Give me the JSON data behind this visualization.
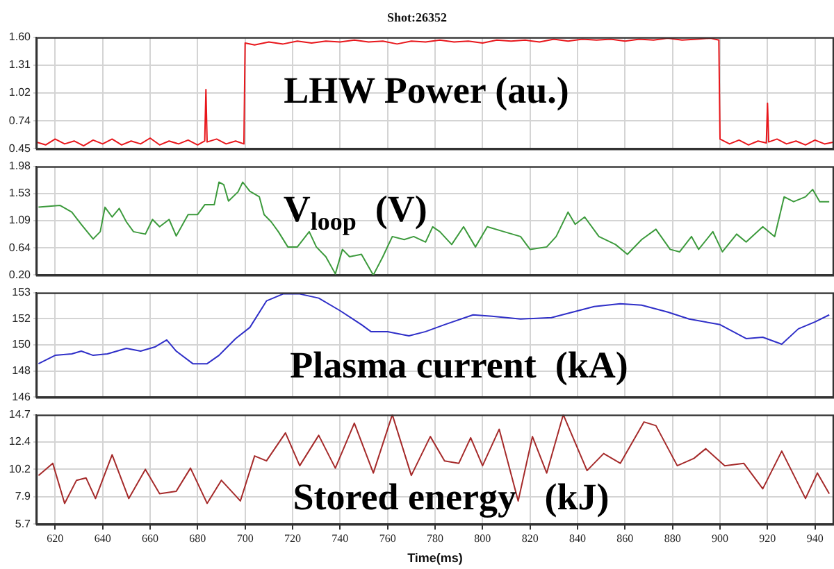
{
  "chart_data": [
    {
      "type": "line",
      "title": "Shot:26352",
      "annotations": [
        "LHW Power (au.)"
      ],
      "tick_labels": "y",
      "grid": true,
      "marker": "none",
      "xlim": [
        612,
        948
      ],
      "xticks": [
        620,
        640,
        660,
        680,
        700,
        720,
        740,
        760,
        780,
        800,
        820,
        840,
        860,
        880,
        900,
        920,
        940
      ],
      "ylim": [
        0.45,
        1.6
      ],
      "yticks": [
        {
          "value": 0.45,
          "label": "0.45"
        },
        {
          "value": 0.7375,
          "label": "0.74"
        },
        {
          "value": 1.025,
          "label": "1.02"
        },
        {
          "value": 1.3125,
          "label": "1.31"
        },
        {
          "value": 1.6,
          "label": "1.60"
        }
      ],
      "series": [
        {
          "color": "#e8161b",
          "x": [
            612,
            616,
            620,
            624,
            628,
            632,
            636,
            640,
            644,
            648,
            652,
            656,
            660,
            664,
            668,
            672,
            676,
            680,
            683,
            683.5,
            684,
            688,
            692,
            696,
            699.5,
            700,
            704,
            710,
            716,
            722,
            728,
            734,
            740,
            746,
            752,
            758,
            764,
            770,
            776,
            782,
            788,
            794,
            800,
            806,
            812,
            818,
            824,
            830,
            836,
            842,
            848,
            854,
            860,
            866,
            872,
            878,
            884,
            890,
            896,
            899.5,
            900,
            904,
            908,
            912,
            916,
            919.5,
            920,
            920.5,
            924,
            928,
            932,
            936,
            940,
            944,
            948
          ],
          "values": [
            0.52,
            0.49,
            0.55,
            0.5,
            0.53,
            0.48,
            0.54,
            0.5,
            0.55,
            0.49,
            0.53,
            0.5,
            0.56,
            0.49,
            0.53,
            0.5,
            0.54,
            0.49,
            0.53,
            1.06,
            0.52,
            0.55,
            0.5,
            0.53,
            0.5,
            1.54,
            1.52,
            1.55,
            1.53,
            1.56,
            1.54,
            1.56,
            1.55,
            1.57,
            1.55,
            1.56,
            1.53,
            1.56,
            1.55,
            1.57,
            1.55,
            1.56,
            1.54,
            1.57,
            1.56,
            1.57,
            1.55,
            1.58,
            1.56,
            1.58,
            1.57,
            1.58,
            1.56,
            1.58,
            1.57,
            1.59,
            1.57,
            1.58,
            1.59,
            1.57,
            0.55,
            0.5,
            0.54,
            0.49,
            0.53,
            0.51,
            0.92,
            0.52,
            0.55,
            0.5,
            0.53,
            0.49,
            0.54,
            0.5,
            0.52
          ]
        }
      ]
    },
    {
      "type": "line",
      "annotations": [
        "V$_{loop}$  (V)"
      ],
      "tick_labels": "y",
      "grid": true,
      "marker": "none",
      "xlim": [
        612,
        948
      ],
      "xticks": [
        620,
        640,
        660,
        680,
        700,
        720,
        740,
        760,
        780,
        800,
        820,
        840,
        860,
        880,
        900,
        920,
        940
      ],
      "ylim": [
        0.2,
        1.98
      ],
      "yticks": [
        {
          "value": 0.2,
          "label": "0.20"
        },
        {
          "value": 0.645,
          "label": "0.64"
        },
        {
          "value": 1.09,
          "label": "1.09"
        },
        {
          "value": 1.535,
          "label": "1.53"
        },
        {
          "value": 1.98,
          "label": "1.98"
        }
      ],
      "series": [
        {
          "color": "#3c9a3c",
          "x": [
            613,
            622,
            627,
            631,
            636,
            639,
            641,
            644,
            647,
            650,
            653,
            658,
            661,
            664,
            668,
            671,
            676,
            680,
            683,
            687,
            689,
            691,
            693,
            697,
            699,
            702,
            706,
            708,
            711,
            714,
            718,
            722,
            727,
            730,
            734,
            738,
            741,
            744,
            749,
            754,
            758,
            762,
            767,
            771,
            776,
            779,
            782,
            787,
            792,
            797,
            802,
            809,
            816,
            820,
            827,
            831,
            836,
            839,
            843,
            849,
            856,
            861,
            867,
            873,
            879,
            883,
            888,
            891,
            897,
            901,
            907,
            911,
            918,
            923,
            927,
            931,
            936,
            939,
            942,
            946
          ],
          "values": [
            1.31,
            1.34,
            1.23,
            1.03,
            0.79,
            0.91,
            1.31,
            1.15,
            1.29,
            1.07,
            0.91,
            0.87,
            1.11,
            0.99,
            1.11,
            0.84,
            1.19,
            1.19,
            1.35,
            1.35,
            1.72,
            1.68,
            1.41,
            1.56,
            1.72,
            1.57,
            1.48,
            1.19,
            1.07,
            0.91,
            0.66,
            0.66,
            0.91,
            0.66,
            0.5,
            0.22,
            0.62,
            0.5,
            0.54,
            0.2,
            0.5,
            0.83,
            0.78,
            0.83,
            0.74,
            0.99,
            0.91,
            0.7,
            0.99,
            0.66,
            0.99,
            0.91,
            0.83,
            0.62,
            0.66,
            0.83,
            1.23,
            1.03,
            1.15,
            0.83,
            0.7,
            0.54,
            0.78,
            0.95,
            0.62,
            0.58,
            0.83,
            0.62,
            0.91,
            0.58,
            0.87,
            0.74,
            0.99,
            0.83,
            1.48,
            1.4,
            1.48,
            1.6,
            1.4,
            1.4
          ]
        }
      ]
    },
    {
      "type": "line",
      "annotations": [
        "Plasma current  (kA)"
      ],
      "tick_labels": "y",
      "grid": true,
      "marker": "none",
      "xlim": [
        612,
        948
      ],
      "xticks": [
        620,
        640,
        660,
        680,
        700,
        720,
        740,
        760,
        780,
        800,
        820,
        840,
        860,
        880,
        900,
        920,
        940
      ],
      "ylim": [
        146,
        153.5
      ],
      "yticks": [
        146,
        {
          "value": 147.875,
          "label": "148"
        },
        {
          "value": 149.75,
          "label": "150"
        },
        {
          "value": 151.625,
          "label": "152"
        },
        {
          "value": 153.5,
          "label": "153"
        }
      ],
      "series": [
        {
          "color": "#2f2fc8",
          "x": [
            613,
            620,
            627,
            631,
            636,
            642,
            650,
            656,
            662,
            667,
            671,
            678,
            684,
            689,
            696,
            702,
            709,
            716,
            723,
            731,
            740,
            749,
            753,
            760,
            769,
            776,
            784,
            796,
            804,
            816,
            829,
            838,
            847,
            858,
            867,
            878,
            887,
            900,
            911,
            918,
            926,
            933,
            940,
            946
          ],
          "values": [
            148.4,
            149.0,
            149.1,
            149.3,
            149.0,
            149.1,
            149.5,
            149.3,
            149.6,
            150.1,
            149.3,
            148.4,
            148.4,
            149.0,
            150.2,
            151.0,
            152.9,
            153.4,
            153.4,
            153.1,
            152.2,
            151.2,
            150.7,
            150.7,
            150.4,
            150.7,
            151.2,
            151.9,
            151.8,
            151.6,
            151.7,
            152.1,
            152.5,
            152.7,
            152.6,
            152.1,
            151.6,
            151.2,
            150.2,
            150.3,
            149.8,
            150.9,
            151.4,
            151.9
          ]
        }
      ]
    },
    {
      "type": "line",
      "annotations": [
        "Stored energy   (kJ)"
      ],
      "xlabel": "Time(ms)",
      "grid": true,
      "marker": "none",
      "xlim": [
        612,
        948
      ],
      "xticks": [
        620,
        640,
        660,
        680,
        700,
        720,
        740,
        760,
        780,
        800,
        820,
        840,
        860,
        880,
        900,
        920,
        940
      ],
      "ylim": [
        5.7,
        14.7
      ],
      "yticks": [
        5.7,
        {
          "value": 7.95,
          "label": "7.9"
        },
        10.2,
        {
          "value": 12.45,
          "label": "12.4"
        },
        14.7
      ],
      "series": [
        {
          "color": "#a52a2a",
          "x": [
            613,
            619,
            624,
            629,
            633,
            637,
            644,
            651,
            658,
            664,
            671,
            677,
            684,
            690,
            698,
            704,
            709,
            717,
            723,
            731,
            738,
            746,
            754,
            762,
            770,
            778,
            784,
            790,
            795,
            800,
            807,
            815,
            821,
            827,
            834,
            844,
            851,
            858,
            868,
            873,
            882,
            889,
            894,
            902,
            910,
            918,
            926,
            936,
            941,
            946
          ],
          "values": [
            9.7,
            10.7,
            7.4,
            9.3,
            9.5,
            7.8,
            11.4,
            7.8,
            10.2,
            8.2,
            8.4,
            10.3,
            7.4,
            9.3,
            7.6,
            11.3,
            10.9,
            13.2,
            10.5,
            13.0,
            10.3,
            14.0,
            9.9,
            14.7,
            9.7,
            12.9,
            10.9,
            10.7,
            12.8,
            10.5,
            13.5,
            7.6,
            12.9,
            9.9,
            14.7,
            10.1,
            11.5,
            10.7,
            14.1,
            13.8,
            10.5,
            11.1,
            11.9,
            10.5,
            10.7,
            8.6,
            11.7,
            7.8,
            9.9,
            8.2
          ]
        }
      ]
    }
  ]
}
